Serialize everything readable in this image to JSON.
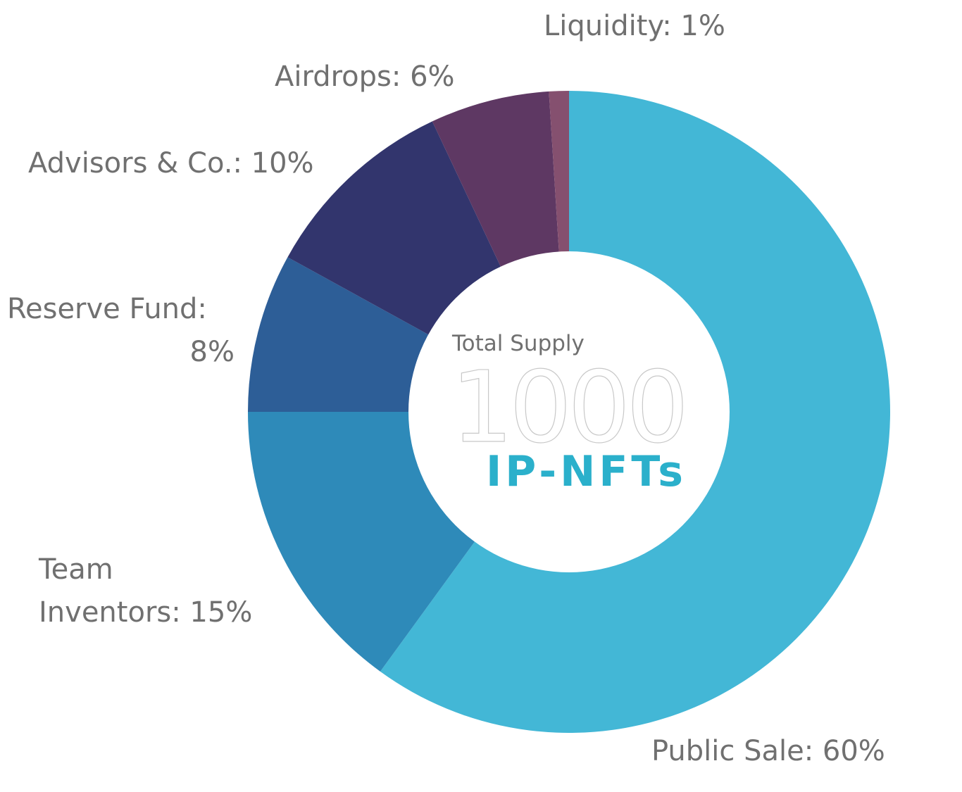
{
  "chart_data": {
    "type": "pie",
    "variant": "donut",
    "series": [
      {
        "values": [
          60,
          15,
          8,
          10,
          6,
          1
        ]
      }
    ],
    "slices": [
      {
        "key": "public-sale",
        "name": "Public Sale",
        "value": 60,
        "color": "#43B7D6"
      },
      {
        "key": "team-inventors",
        "name": "Team Inventors",
        "value": 15,
        "color": "#2E8AB9"
      },
      {
        "key": "reserve-fund",
        "name": "Reserve Fund",
        "value": 8,
        "color": "#2D5E97"
      },
      {
        "key": "advisors",
        "name": "Advisors & Co.",
        "value": 10,
        "color": "#32356D"
      },
      {
        "key": "airdrops",
        "name": "Airdrops",
        "value": 6,
        "color": "#5E3863"
      },
      {
        "key": "liquidity",
        "name": "Liquidity",
        "value": 1,
        "color": "#85506F"
      }
    ],
    "labels": {
      "public_sale": "Public Sale: 60%",
      "team_line1": "Team",
      "team_line2": "Inventors: 15%",
      "reserve_line1": "Reserve Fund:",
      "reserve_line2": "8%",
      "advisors": "Advisors & Co.: 10%",
      "airdrops": "Airdrops: 6%",
      "liquidity": "Liquidity: 1%"
    },
    "center": {
      "caption": "Total Supply",
      "value": "1000",
      "unit": "IP-NFTs",
      "unit_color": "#2BB0CB"
    },
    "start_direction": "12 o'clock",
    "order": "clockwise"
  }
}
